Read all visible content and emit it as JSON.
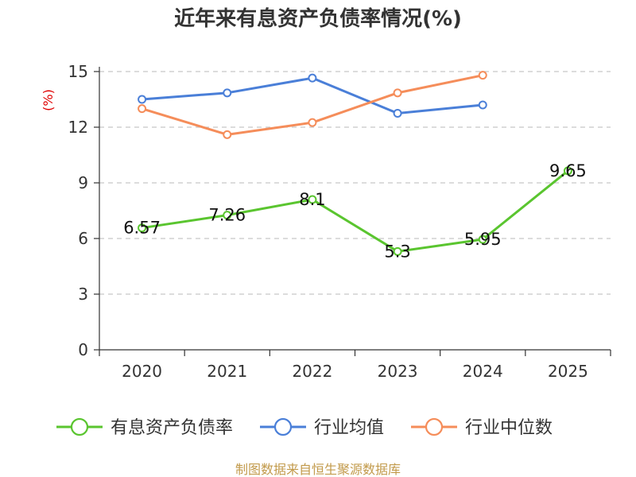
{
  "chart_data": {
    "type": "line",
    "title": "近年来有息资产负债率情况(%)",
    "ylabel": "(%)",
    "xlabel": "",
    "categories": [
      "2020",
      "2021",
      "2022",
      "2023",
      "2024",
      "2025"
    ],
    "ylim": [
      0,
      15
    ],
    "yticks": [
      "0",
      "3",
      "6",
      "9",
      "12",
      "15"
    ],
    "grid": "horizontal-dashed",
    "legend_position": "bottom",
    "series": [
      {
        "name": "有息资产负债率",
        "color": "#5ac52f",
        "values": [
          6.57,
          7.26,
          8.1,
          5.3,
          5.95,
          9.65
        ],
        "labels": [
          "6.57",
          "7.26",
          "8.1",
          "5.3",
          "5.95",
          "9.65"
        ]
      },
      {
        "name": "行业均值",
        "color": "#4a7fd8",
        "values": [
          13.5,
          13.85,
          14.65,
          12.75,
          13.2,
          null
        ]
      },
      {
        "name": "行业中位数",
        "color": "#f58d5a",
        "values": [
          13.0,
          11.6,
          12.25,
          13.85,
          14.8,
          null
        ]
      }
    ]
  },
  "source": "制图数据来自恒生聚源数据库"
}
